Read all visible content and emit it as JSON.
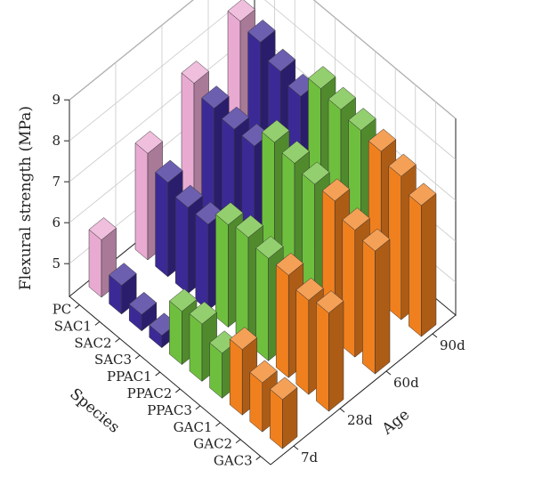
{
  "chart_data": {
    "type": "bar",
    "subtype": "3d-bar",
    "title": "",
    "zlabel": "Flexural strength (MPa)",
    "xlabel": "Species",
    "ylabel": "Age",
    "zlim": [
      4.2,
      9
    ],
    "z_ticks": [
      "5",
      "6",
      "7",
      "8",
      "9"
    ],
    "grid": true,
    "species": [
      "PC",
      "SAC1",
      "SAC2",
      "SAC3",
      "PPAC1",
      "PPAC2",
      "PPAC3",
      "GAC1",
      "GAC2",
      "GAC3"
    ],
    "ages": [
      "7d",
      "28d",
      "60d",
      "90d"
    ],
    "colors": {
      "PC": "#e9aad2",
      "SAC": "#3b2a96",
      "PPAC": "#6fbf3e",
      "GAC": "#f0801e"
    },
    "series": [
      {
        "name": "7d",
        "values": [
          5.6,
          4.9,
          4.6,
          4.5,
          5.5,
          5.6,
          5.3,
          5.8,
          5.4,
          5.4
        ]
      },
      {
        "name": "28d",
        "values": [
          6.8,
          6.5,
          6.3,
          6.3,
          6.7,
          6.8,
          6.7,
          6.7,
          6.5,
          6.6
        ]
      },
      {
        "name": "60d",
        "values": [
          7.6,
          7.4,
          7.3,
          7.3,
          7.8,
          7.7,
          7.6,
          7.6,
          7.3,
          7.2
        ]
      },
      {
        "name": "90d",
        "values": [
          8.2,
          8.1,
          7.8,
          7.6,
          8.2,
          8.1,
          8.0,
          7.9,
          7.7,
          7.4
        ]
      }
    ]
  }
}
